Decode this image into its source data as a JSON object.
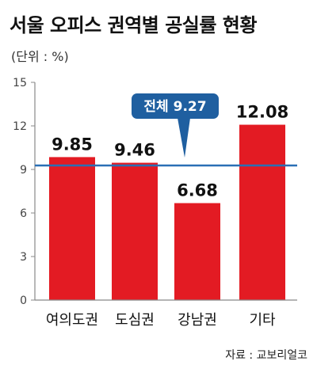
{
  "title": "서울 오피스 권역별 공실률 현황",
  "unit": "(단위 : %)",
  "source": "자료 : 교보리얼코",
  "colors": {
    "bar": "#e31b23",
    "reference_line": "#2a6fb5",
    "callout": "#1f5fa0",
    "axis": "#888888"
  },
  "chart_data": {
    "type": "bar",
    "categories": [
      "여의도권",
      "도심권",
      "강남권",
      "기타"
    ],
    "values": [
      9.85,
      9.46,
      6.68,
      12.08
    ],
    "value_labels": [
      "9.85",
      "9.46",
      "6.68",
      "12.08"
    ],
    "ylim": [
      0,
      15
    ],
    "yticks": [
      0,
      3,
      6,
      9,
      12,
      15
    ],
    "reference_line": {
      "value": 9.27,
      "label": "전체 9.27"
    },
    "grid": false,
    "legend": "none"
  }
}
